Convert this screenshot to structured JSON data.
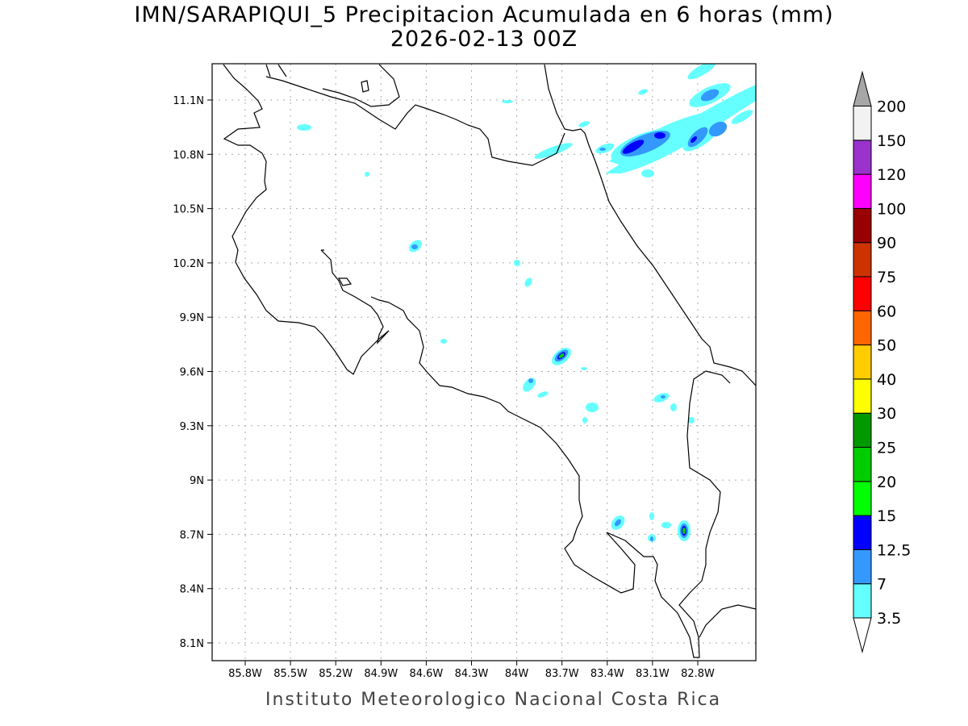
{
  "title": "IMN/SARAPIQUI_5 Precipitacion Acumulada en 6 horas (mm)",
  "subtitle": "2026-02-13 00Z",
  "footer": "Instituto Meteorologico Nacional Costa Rica",
  "map": {
    "projection": "lat-lon",
    "extent": {
      "lon": [
        -86.02,
        -82.42
      ],
      "lat": [
        8.0,
        11.3
      ]
    },
    "grid": "dotted",
    "lon_ticks": [
      "85.8W",
      "85.5W",
      "85.2W",
      "84.9W",
      "84.6W",
      "84.3W",
      "84W",
      "83.7W",
      "83.4W",
      "83.1W",
      "82.8W"
    ],
    "lat_ticks": [
      "11.1N",
      "10.8N",
      "10.5N",
      "10.2N",
      "9.9N",
      "9.6N",
      "9.3N",
      "9N",
      "8.7N",
      "8.4N",
      "8.1N"
    ]
  },
  "colorbar": {
    "labels": [
      "3.5",
      "7",
      "12.5",
      "15",
      "20",
      "25",
      "30",
      "40",
      "50",
      "60",
      "75",
      "90",
      "100",
      "120",
      "150",
      "200"
    ],
    "colors": [
      "#66ffff",
      "#3399ff",
      "#0000ff",
      "#00ff00",
      "#00cc00",
      "#009900",
      "#ffff00",
      "#ffcc00",
      "#ff6600",
      "#ff0000",
      "#cc3300",
      "#990000",
      "#ff00ff",
      "#9933cc",
      "#f2f2f2"
    ],
    "below_color": "#ffffff",
    "above_color": "#a6a6a6"
  }
}
